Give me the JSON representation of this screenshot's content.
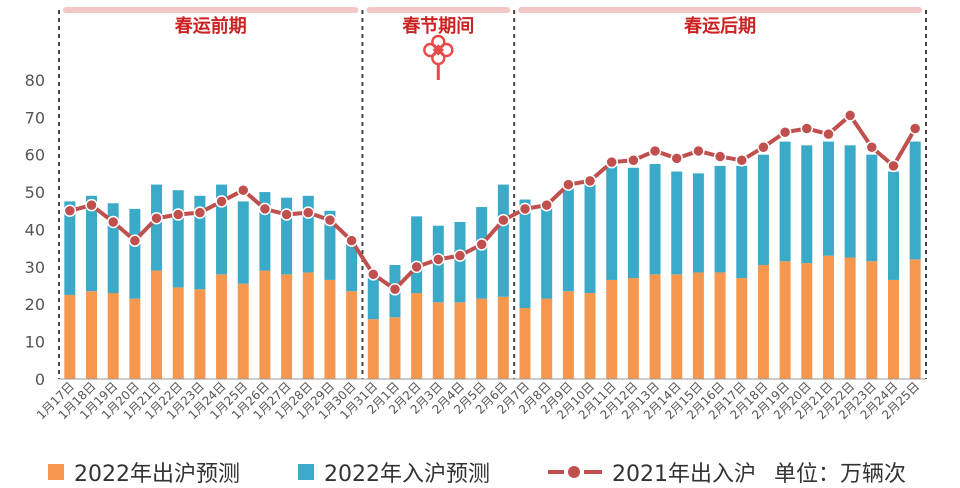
{
  "chart_data": {
    "type": "bar+line",
    "stacked": true,
    "categories": [
      "1月17日",
      "1月18日",
      "1月19日",
      "1月20日",
      "1月21日",
      "1月22日",
      "1月23日",
      "1月24日",
      "1月25日",
      "1月26日",
      "1月27日",
      "1月28日",
      "1月29日",
      "1月30日",
      "1月31日",
      "2月1日",
      "2月2日",
      "2月3日",
      "2月4日",
      "2月5日",
      "2月6日",
      "2月7日",
      "2月8日",
      "2月9日",
      "2月10日",
      "2月11日",
      "2月12日",
      "2月13日",
      "2月14日",
      "2月15日",
      "2月16日",
      "2月17日",
      "2月18日",
      "2月19日",
      "2月20日",
      "2月21日",
      "2月22日",
      "2月23日",
      "2月24日",
      "2月25日"
    ],
    "series": [
      {
        "name": "2022年出沪预测",
        "type": "bar",
        "color": "#f5974e",
        "values": [
          22.5,
          23.5,
          23,
          21.5,
          29,
          24.5,
          24,
          28,
          25.5,
          29,
          28,
          28.5,
          26.5,
          23.5,
          16,
          16.5,
          23,
          20.5,
          20.5,
          21.5,
          22,
          19,
          21.5,
          23.5,
          23,
          26.5,
          27,
          28,
          28,
          28.5,
          28.5,
          27,
          30.5,
          31.5,
          31,
          33,
          32.5,
          31.5,
          26.5,
          32
        ]
      },
      {
        "name": "2022年入沪预测",
        "type": "bar",
        "color": "#3ba9c8",
        "values": [
          25,
          25.5,
          24,
          24,
          23,
          26,
          25,
          24,
          22,
          21,
          20.5,
          20.5,
          18.5,
          13,
          13,
          14,
          20.5,
          20.5,
          21.5,
          24.5,
          30,
          29,
          26,
          27.5,
          29.5,
          30.5,
          29.5,
          29.5,
          27.5,
          26.5,
          28.5,
          30,
          29.5,
          32,
          31.5,
          30.5,
          30,
          28.5,
          29,
          31.5
        ]
      },
      {
        "name": "2021年出入沪",
        "type": "line",
        "color": "#c0504d",
        "values": [
          45,
          46.5,
          42,
          37,
          43,
          44,
          44.5,
          47.5,
          50.5,
          45.5,
          44,
          44.5,
          42.5,
          37,
          28,
          24,
          30,
          32,
          33,
          36,
          42.5,
          45.5,
          46.5,
          52,
          53,
          58,
          58.5,
          61,
          59,
          61,
          59.5,
          58.5,
          62,
          66,
          67,
          65.5,
          70.5,
          62,
          57,
          67
        ]
      }
    ],
    "y_ticks": [
      "0",
      "10",
      "20",
      "30",
      "40",
      "50",
      "60",
      "70",
      "80"
    ],
    "ylim": [
      0,
      88
    ],
    "periods": [
      {
        "label": "春运前期",
        "start": 0,
        "end": 13,
        "color": "#cc2222"
      },
      {
        "label": "春节期间",
        "start": 14,
        "end": 20,
        "color": "#cc2222"
      },
      {
        "label": "春运后期",
        "start": 21,
        "end": 39,
        "color": "#cc2222"
      }
    ],
    "unit_label": "单位：万辆次",
    "grid": false
  },
  "legend": {
    "outbound_2022": "2022年出沪预测",
    "inbound_2022": "2022年入沪预测",
    "total_2021": "2021年出入沪",
    "unit": "单位：万辆次"
  },
  "colors": {
    "outbound": "#f5974e",
    "inbound": "#3ba9c8",
    "line": "#c0504d",
    "period_bar": "#f4c7c7",
    "period_text": "#cc2222",
    "axis": "#999999",
    "knot": "#e84a4a"
  },
  "icons": {
    "festival_knot": "chinese-knot-icon"
  }
}
